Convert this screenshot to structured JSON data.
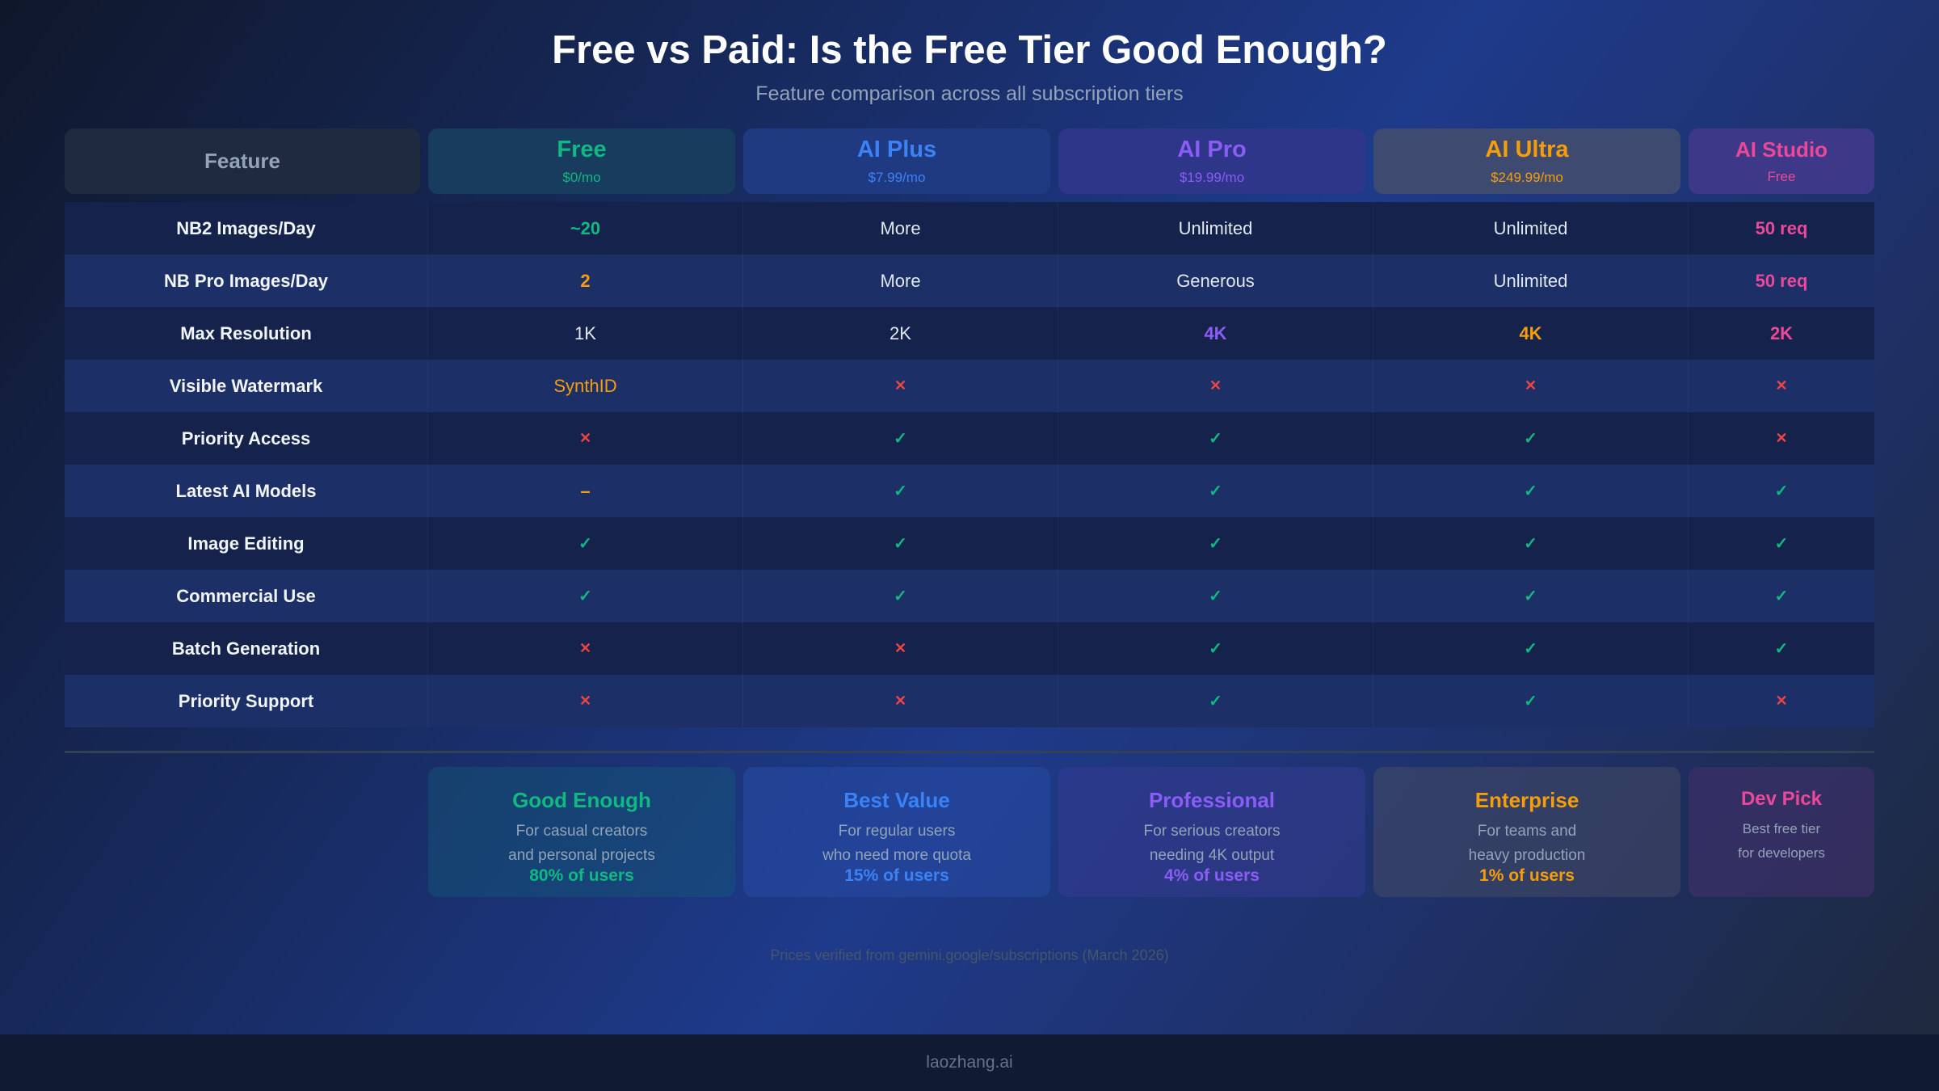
{
  "title": "Free vs Paid: Is the Free Tier Good Enough?",
  "subtitle": "Feature comparison across all subscription tiers",
  "colors": {
    "free": "#10b981",
    "plus": "#3b82f6",
    "pro": "#8b5cf6",
    "ultra": "#f59e0b",
    "studio": "#ec4899",
    "check": "#10b981",
    "cross": "#ef4444"
  },
  "icons": {
    "check": "check-icon",
    "cross": "cross-icon",
    "dash": "dash-icon"
  },
  "header": {
    "feature": "Feature",
    "tiers": [
      {
        "name": "Free",
        "price": "$0/mo"
      },
      {
        "name": "AI Plus",
        "price": "$7.99/mo"
      },
      {
        "name": "AI Pro",
        "price": "$19.99/mo"
      },
      {
        "name": "AI Ultra",
        "price": "$249.99/mo"
      },
      {
        "name": "AI Studio",
        "price": "Free"
      }
    ]
  },
  "rows": [
    {
      "feature": "NB2 Images/Day",
      "values": [
        "~20",
        "More",
        "Unlimited",
        "Unlimited",
        "50 req"
      ]
    },
    {
      "feature": "NB Pro Images/Day",
      "values": [
        "2",
        "More",
        "Generous",
        "Unlimited",
        "50 req"
      ]
    },
    {
      "feature": "Max Resolution",
      "values": [
        "1K",
        "2K",
        "4K",
        "4K",
        "2K"
      ]
    },
    {
      "feature": "Visible Watermark",
      "values": [
        "SynthID",
        "✕",
        "✕",
        "✕",
        "✕"
      ]
    },
    {
      "feature": "Priority Access",
      "values": [
        "✕",
        "✓",
        "✓",
        "✓",
        "✕"
      ]
    },
    {
      "feature": "Latest AI Models",
      "values": [
        "–",
        "✓",
        "✓",
        "✓",
        "✓"
      ]
    },
    {
      "feature": "Image Editing",
      "values": [
        "✓",
        "✓",
        "✓",
        "✓",
        "✓"
      ]
    },
    {
      "feature": "Commercial Use",
      "values": [
        "✓",
        "✓",
        "✓",
        "✓",
        "✓"
      ]
    },
    {
      "feature": "Batch Generation",
      "values": [
        "✕",
        "✕",
        "✓",
        "✓",
        "✓"
      ]
    },
    {
      "feature": "Priority Support",
      "values": [
        "✕",
        "✕",
        "✓",
        "✓",
        "✕"
      ]
    }
  ],
  "cards": [
    {
      "title": "Good Enough",
      "line1": "For casual creators",
      "line2": "and personal projects",
      "users": "80% of users"
    },
    {
      "title": "Best Value",
      "line1": "For regular users",
      "line2": "who need more quota",
      "users": "15% of users"
    },
    {
      "title": "Professional",
      "line1": "For serious creators",
      "line2": "needing 4K output",
      "users": "4% of users"
    },
    {
      "title": "Enterprise",
      "line1": "For teams and",
      "line2": "heavy production",
      "users": "1% of users"
    },
    {
      "title": "Dev Pick",
      "line1": "Best free tier",
      "line2": "for developers",
      "users": ""
    }
  ],
  "note": "Prices verified from gemini.google/subscriptions (March 2026)",
  "footer": "laozhang.ai"
}
